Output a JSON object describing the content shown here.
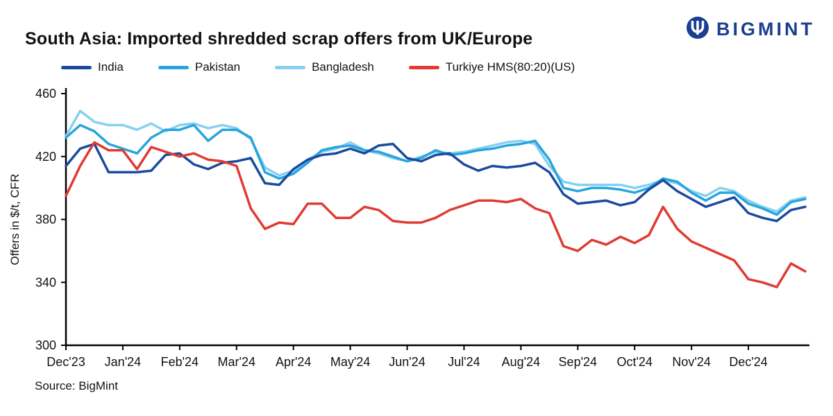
{
  "header": {
    "title": "South Asia: Imported shredded scrap offers from UK/Europe",
    "brand": "BIGMINT",
    "brand_color": "#1c3e91"
  },
  "chart_data": {
    "type": "line",
    "title": "South Asia: Imported shredded scrap offers from UK/Europe",
    "xlabel": "",
    "ylabel": "Offers in $/t, CFR",
    "ylim": [
      300,
      460
    ],
    "yticks": [
      300,
      340,
      380,
      420,
      460
    ],
    "grid": false,
    "legend_position": "top",
    "points_per_month": 4,
    "x_tick_labels": [
      "Dec'23",
      "Jan'24",
      "Feb'24",
      "Mar'24",
      "Apr'24",
      "May'24",
      "Jun'24",
      "Jul'24",
      "Aug'24",
      "Sep'24",
      "Oct'24",
      "Nov'24",
      "Dec'24"
    ],
    "series": [
      {
        "name": "India",
        "color": "#1b4a9c",
        "values": [
          414,
          425,
          428,
          410,
          410,
          410,
          411,
          421,
          422,
          415,
          412,
          416,
          417,
          419,
          403,
          402,
          412,
          418,
          421,
          422,
          425,
          422,
          427,
          428,
          419,
          417,
          421,
          422,
          415,
          411,
          414,
          413,
          414,
          416,
          410,
          396,
          390,
          391,
          392,
          389,
          391,
          399,
          405,
          398,
          393,
          388,
          391,
          394,
          384,
          381,
          379,
          386,
          388
        ]
      },
      {
        "name": "Pakistan",
        "color": "#27a5dc",
        "values": [
          432,
          440,
          436,
          428,
          425,
          422,
          432,
          437,
          437,
          440,
          430,
          437,
          437,
          432,
          410,
          406,
          409,
          416,
          424,
          426,
          427,
          424,
          423,
          420,
          417,
          419,
          424,
          421,
          422,
          424,
          425,
          427,
          428,
          430,
          418,
          400,
          398,
          400,
          400,
          399,
          397,
          400,
          406,
          404,
          397,
          392,
          397,
          397,
          390,
          387,
          383,
          391,
          393
        ]
      },
      {
        "name": "Bangladesh",
        "color": "#86d0f2",
        "values": [
          433,
          449,
          442,
          440,
          440,
          437,
          441,
          436,
          440,
          441,
          438,
          440,
          438,
          431,
          413,
          408,
          411,
          418,
          423,
          425,
          429,
          424,
          422,
          419,
          417,
          420,
          423,
          422,
          423,
          425,
          427,
          429,
          430,
          428,
          414,
          404,
          402,
          402,
          402,
          402,
          400,
          402,
          405,
          403,
          398,
          395,
          400,
          398,
          392,
          388,
          385,
          392,
          394
        ]
      },
      {
        "name": "Turkiye HMS(80:20)(US)",
        "color": "#e03a32",
        "values": [
          395,
          414,
          429,
          424,
          424,
          412,
          426,
          423,
          420,
          422,
          418,
          417,
          414,
          387,
          374,
          378,
          377,
          390,
          390,
          381,
          381,
          388,
          386,
          379,
          378,
          378,
          381,
          386,
          389,
          392,
          392,
          391,
          393,
          387,
          384,
          363,
          360,
          367,
          364,
          369,
          365,
          370,
          388,
          374,
          366,
          362,
          358,
          354,
          342,
          340,
          337,
          352,
          347
        ]
      }
    ]
  },
  "footer": {
    "source": "Source: BigMint"
  }
}
